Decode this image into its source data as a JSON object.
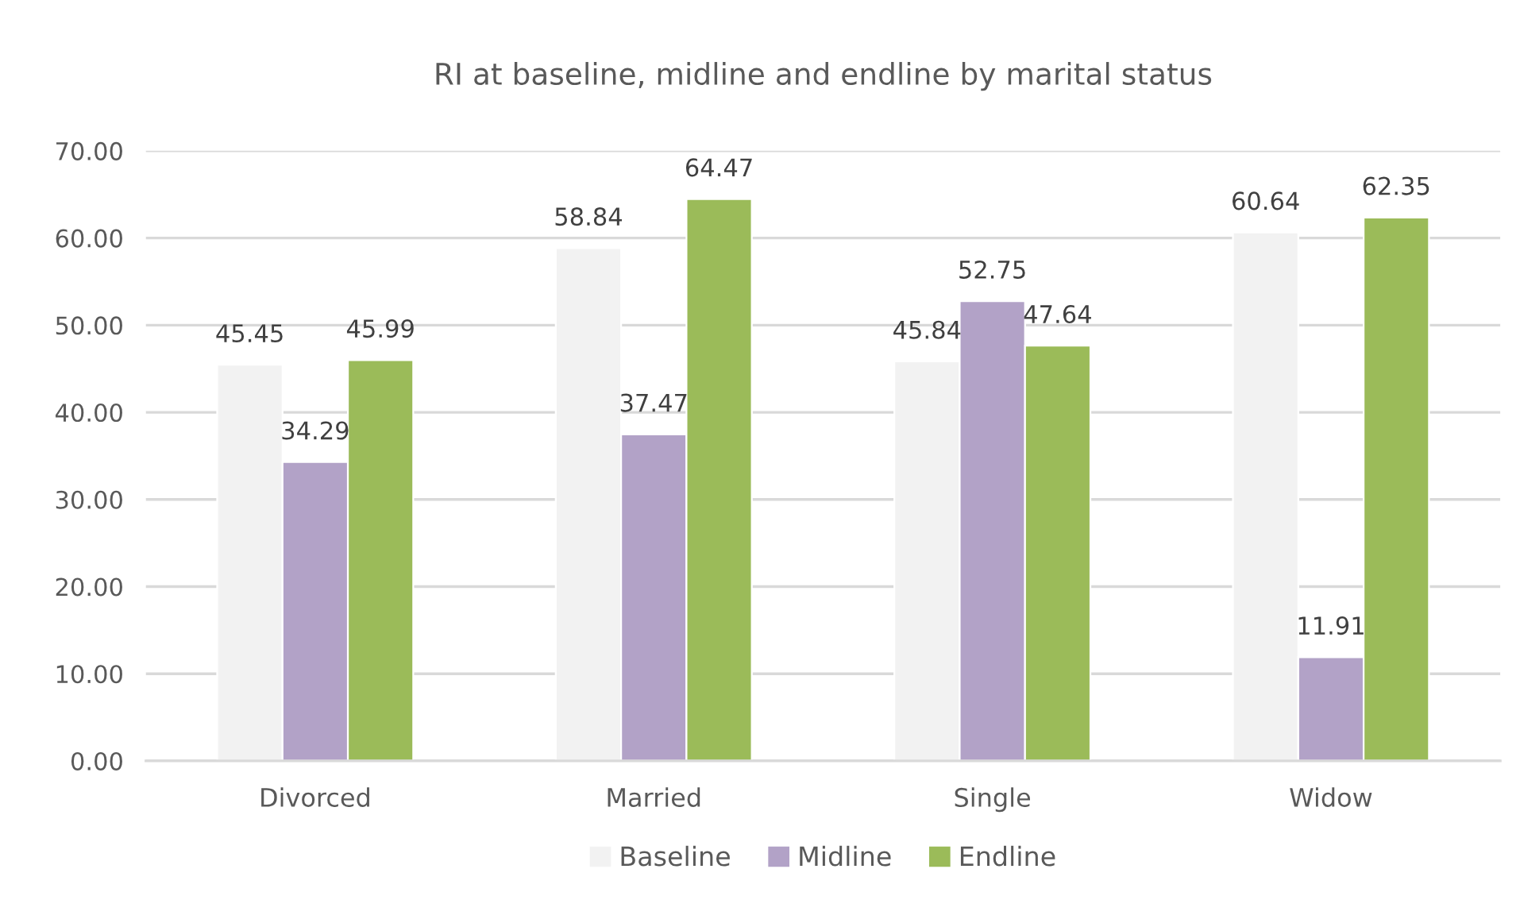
{
  "chart_data": {
    "type": "bar",
    "title": "RI at baseline, midline and endline by marital status",
    "categories": [
      "Divorced",
      "Married",
      "Single",
      "Widow"
    ],
    "series": [
      {
        "name": "Baseline",
        "color": "#f2f2f2",
        "values": [
          45.45,
          58.84,
          45.84,
          60.64
        ]
      },
      {
        "name": "Midline",
        "color": "#b2a2c7",
        "values": [
          34.29,
          37.47,
          52.75,
          11.91
        ]
      },
      {
        "name": "Endline",
        "color": "#9bbb59",
        "values": [
          45.99,
          64.47,
          47.64,
          62.35
        ]
      }
    ],
    "ylim": [
      0,
      70
    ],
    "yticks": [
      {
        "value": 0,
        "label": "0.00"
      },
      {
        "value": 10,
        "label": "10.00"
      },
      {
        "value": 20,
        "label": "20.00"
      },
      {
        "value": 30,
        "label": "30.00"
      },
      {
        "value": 40,
        "label": "40.00"
      },
      {
        "value": 50,
        "label": "50.00"
      },
      {
        "value": 60,
        "label": "60.00"
      },
      {
        "value": 70,
        "label": "70.00"
      }
    ],
    "grid": "y",
    "legend": "bottom",
    "data_labels": true
  }
}
